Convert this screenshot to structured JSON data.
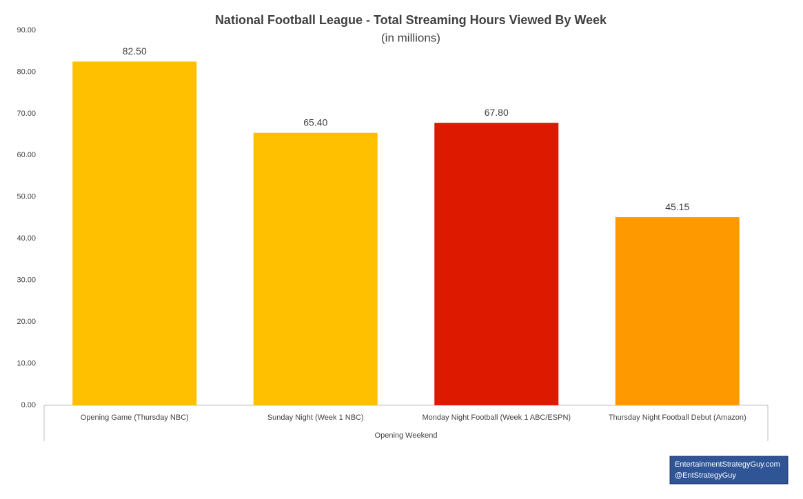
{
  "chart_data": {
    "type": "bar",
    "title": "National Football League - Total Streaming Hours Viewed By Week",
    "subtitle": "(in millions)",
    "categories": [
      "Opening Game (Thursday NBC)",
      "Sunday Night (Week 1 NBC)",
      "Monday Night Football (Week 1 ABC/ESPN)",
      "Thursday Night Football Debut (Amazon)"
    ],
    "group_label": "Opening Weekend",
    "values": [
      82.5,
      65.4,
      67.8,
      45.15
    ],
    "value_labels": [
      "82.50",
      "65.40",
      "67.80",
      "45.15"
    ],
    "colors": [
      "#ffc000",
      "#ffc000",
      "#dd1900",
      "#ff9900"
    ],
    "ylim": [
      0,
      90
    ],
    "yticks": [
      {
        "value": 0,
        "label": "0.00"
      },
      {
        "value": 10,
        "label": "10.00"
      },
      {
        "value": 20,
        "label": "20.00"
      },
      {
        "value": 30,
        "label": "30.00"
      },
      {
        "value": 40,
        "label": "40.00"
      },
      {
        "value": 50,
        "label": "50.00"
      },
      {
        "value": 60,
        "label": "60.00"
      },
      {
        "value": 70,
        "label": "70.00"
      },
      {
        "value": 80,
        "label": "80.00"
      },
      {
        "value": 90,
        "label": "90.00"
      }
    ],
    "grid": false
  },
  "footer": [
    "EntertainmentStrategyGuy.com",
    "@EntStrategyGuy"
  ]
}
